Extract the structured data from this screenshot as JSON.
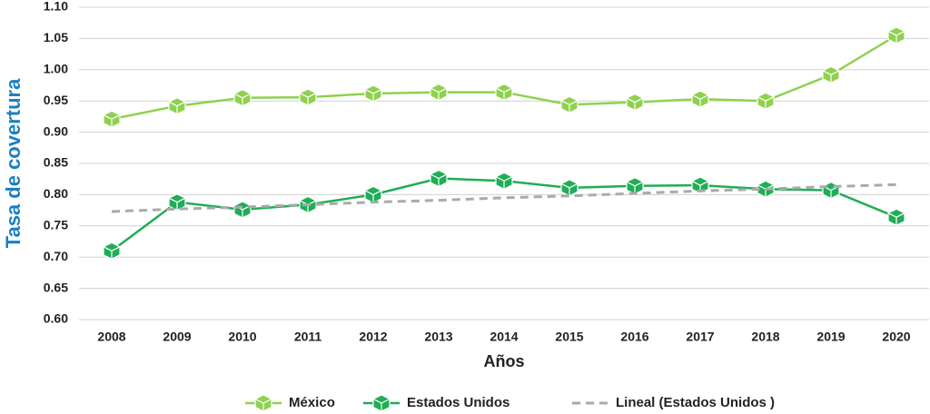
{
  "chart_data": {
    "type": "line",
    "y_label": "Tasa de covertura",
    "x_label": "Años",
    "categories": [
      "2008",
      "2009",
      "2010",
      "2011",
      "2012",
      "2013",
      "2014",
      "2015",
      "2016",
      "2017",
      "2018",
      "2019",
      "2020"
    ],
    "series": [
      {
        "name": "México",
        "color": "#8fd14f",
        "marker": "cube",
        "values": [
          0.921,
          0.942,
          0.955,
          0.956,
          0.962,
          0.964,
          0.964,
          0.944,
          0.948,
          0.953,
          0.95,
          0.992,
          1.055
        ]
      },
      {
        "name": "Estados Unidos",
        "color": "#1fae56",
        "marker": "cube",
        "values": [
          0.71,
          0.788,
          0.776,
          0.784,
          0.8,
          0.826,
          0.822,
          0.811,
          0.814,
          0.815,
          0.809,
          0.807,
          0.764
        ]
      },
      {
        "name": "Lineal (Estados Unidos )",
        "color": "#aaaaaa",
        "dashed": true,
        "values": [
          0.773,
          0.777,
          0.78,
          0.784,
          0.788,
          0.791,
          0.795,
          0.798,
          0.802,
          0.806,
          0.809,
          0.813,
          0.816
        ]
      }
    ],
    "ylim": [
      0.6,
      1.1
    ],
    "yticks": [
      {
        "value": 0.6,
        "label": "0.60"
      },
      0.65,
      {
        "value": 0.7,
        "label": "0.70"
      },
      0.75,
      {
        "value": 0.8,
        "label": "0.80"
      },
      0.85,
      {
        "value": 0.9,
        "label": "0.90"
      },
      0.95,
      {
        "value": 1.0,
        "label": "1.00"
      },
      1.05,
      {
        "value": 1.1,
        "label": "1.10"
      }
    ],
    "grid": true,
    "legend": "bottom"
  }
}
